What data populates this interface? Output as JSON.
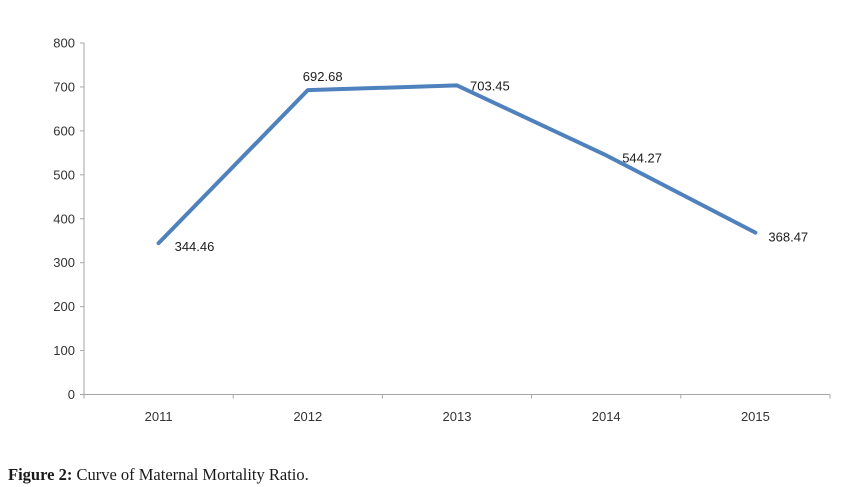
{
  "chart_data": {
    "type": "line",
    "title": "",
    "xlabel": "",
    "ylabel": "",
    "categories": [
      "2011",
      "2012",
      "2013",
      "2014",
      "2015"
    ],
    "series": [
      {
        "name": "Maternal Mortality Ratio",
        "values": [
          344.46,
          692.68,
          703.45,
          544.27,
          368.47
        ]
      }
    ],
    "data_labels": [
      "344.46",
      "692.68",
      "703.45",
      "544.27",
      "368.47"
    ],
    "ylim": [
      0,
      800
    ],
    "ytick_step": 100,
    "ytick_labels": [
      "0",
      "100",
      "200",
      "300",
      "400",
      "500",
      "600",
      "700",
      "800"
    ],
    "grid": false,
    "legend_position": "none",
    "line_color": "#4F81BD",
    "axis_color": "#A6A6A6",
    "tick_label_color": "#333333",
    "data_label_color": "#1C1C1C"
  },
  "caption": {
    "bold": "Figure 2:",
    "text": " Curve of Maternal Mortality Ratio."
  }
}
